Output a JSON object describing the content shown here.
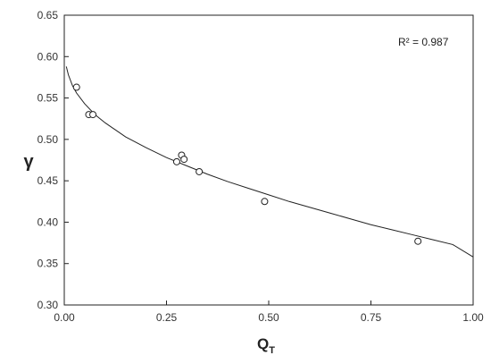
{
  "chart_data": {
    "type": "scatter",
    "xlabel_main": "Q",
    "xlabel_sub": "T",
    "ylabel": "γ",
    "xlim": [
      0.0,
      1.0
    ],
    "ylim": [
      0.3,
      0.65
    ],
    "x_ticks": [
      0.0,
      0.25,
      0.5,
      0.75,
      1.0
    ],
    "x_tick_labels": [
      "0.00",
      "0.25",
      "0.50",
      "0.75",
      "1.00"
    ],
    "y_ticks": [
      0.3,
      0.35,
      0.4,
      0.45,
      0.5,
      0.55,
      0.6,
      0.65
    ],
    "y_tick_labels": [
      "0.30",
      "0.35",
      "0.40",
      "0.45",
      "0.50",
      "0.55",
      "0.60",
      "0.65"
    ],
    "grid": false,
    "annotation": "R² = 0.987",
    "points": [
      {
        "x": 0.03,
        "y": 0.563
      },
      {
        "x": 0.06,
        "y": 0.53
      },
      {
        "x": 0.07,
        "y": 0.53
      },
      {
        "x": 0.275,
        "y": 0.473
      },
      {
        "x": 0.287,
        "y": 0.481
      },
      {
        "x": 0.293,
        "y": 0.476
      },
      {
        "x": 0.33,
        "y": 0.461
      },
      {
        "x": 0.49,
        "y": 0.425
      },
      {
        "x": 0.865,
        "y": 0.377
      }
    ],
    "fit_curve": {
      "x": [
        0.005,
        0.01,
        0.02,
        0.03,
        0.05,
        0.075,
        0.1,
        0.15,
        0.2,
        0.25,
        0.3,
        0.35,
        0.4,
        0.45,
        0.5,
        0.55,
        0.6,
        0.65,
        0.7,
        0.75,
        0.8,
        0.85,
        0.9,
        0.95,
        1.0
      ],
      "y": [
        0.588,
        0.578,
        0.565,
        0.556,
        0.543,
        0.53,
        0.52,
        0.503,
        0.49,
        0.478,
        0.468,
        0.458,
        0.449,
        0.441,
        0.433,
        0.425,
        0.418,
        0.411,
        0.404,
        0.397,
        0.391,
        0.385,
        0.379,
        0.373,
        0.358
      ]
    }
  }
}
